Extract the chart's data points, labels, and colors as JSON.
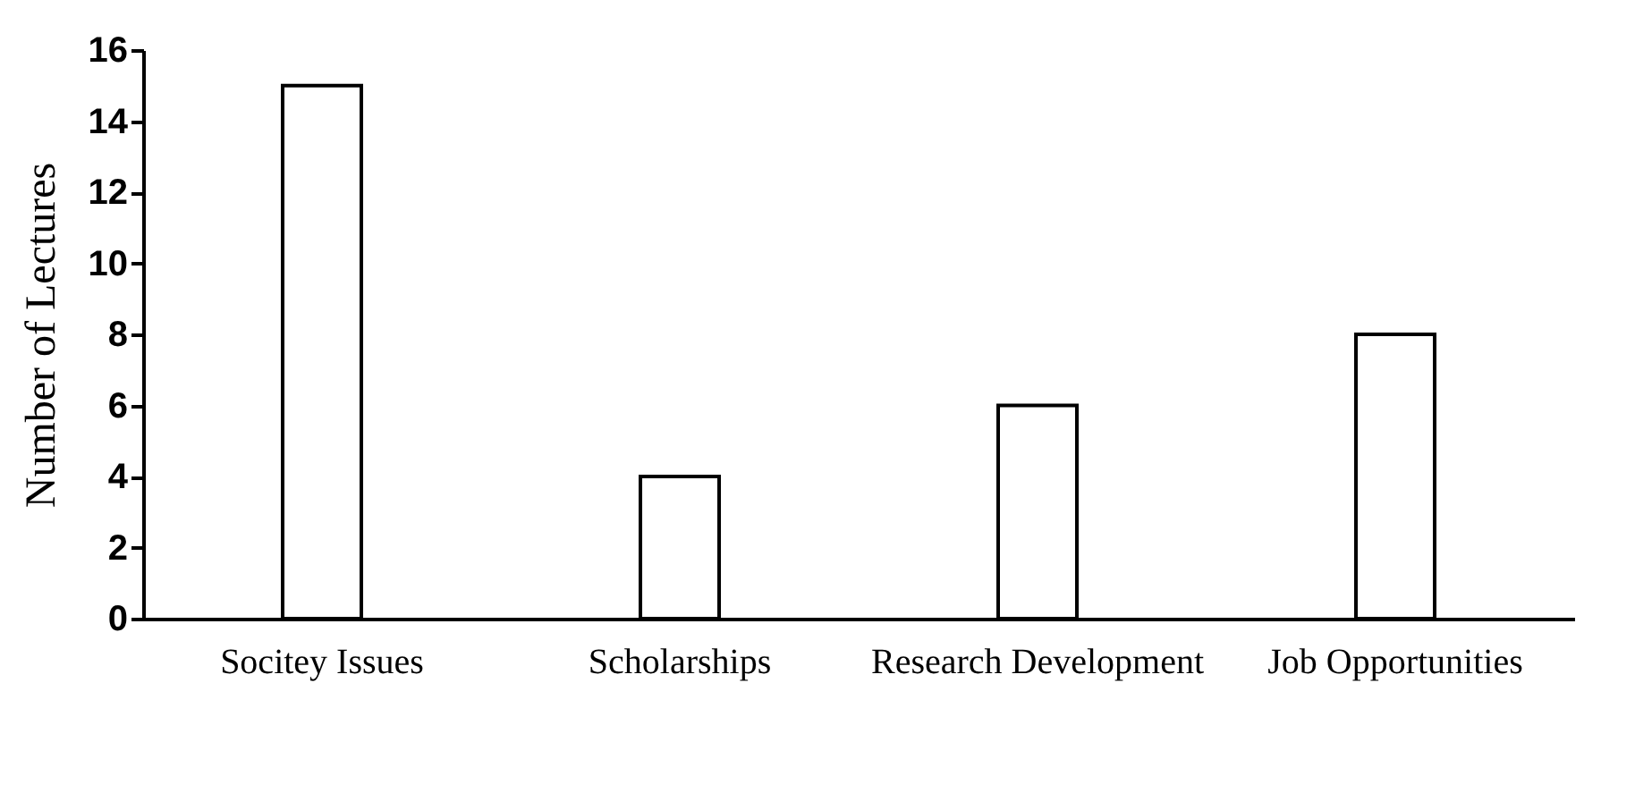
{
  "chart_data": {
    "type": "bar",
    "ylabel": "Number of Lectures",
    "categories": [
      "Socitey Issues",
      "Scholarships",
      "Research Development",
      "Job Opportunities"
    ],
    "values": [
      15,
      4,
      6,
      8
    ],
    "color": "#ffffff",
    "ylim": [
      0,
      16
    ],
    "yticks": [
      0,
      2,
      4,
      6,
      8,
      10,
      12,
      14,
      16
    ],
    "grid": false
  }
}
